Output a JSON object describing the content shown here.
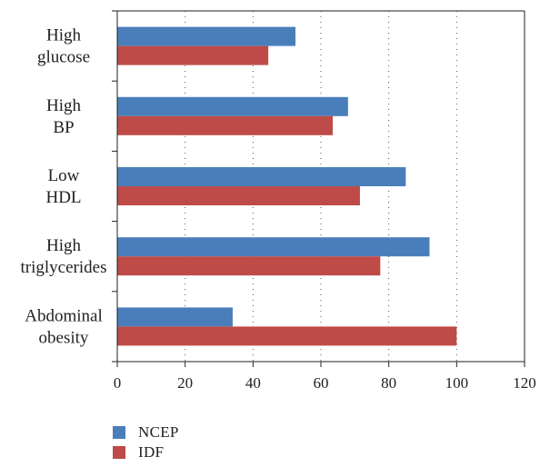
{
  "chart_data": {
    "type": "bar",
    "orientation": "horizontal",
    "categories": [
      [
        "High",
        "glucose"
      ],
      [
        "High",
        "BP"
      ],
      [
        "Low",
        "HDL"
      ],
      [
        "High",
        "triglycerides"
      ],
      [
        "Abdominal",
        "obesity"
      ]
    ],
    "series": [
      {
        "name": "NCEP",
        "color": "#4a7ebb",
        "values": [
          52.5,
          68,
          85,
          92,
          34
        ]
      },
      {
        "name": "IDF",
        "color": "#be4b48",
        "values": [
          44.5,
          63.5,
          71.5,
          77.5,
          100
        ]
      }
    ],
    "xlim": [
      0,
      120
    ],
    "xticks": [
      0,
      20,
      40,
      60,
      80,
      100,
      120
    ],
    "grid": "vertical dotted",
    "legend_position": "bottom-left"
  }
}
